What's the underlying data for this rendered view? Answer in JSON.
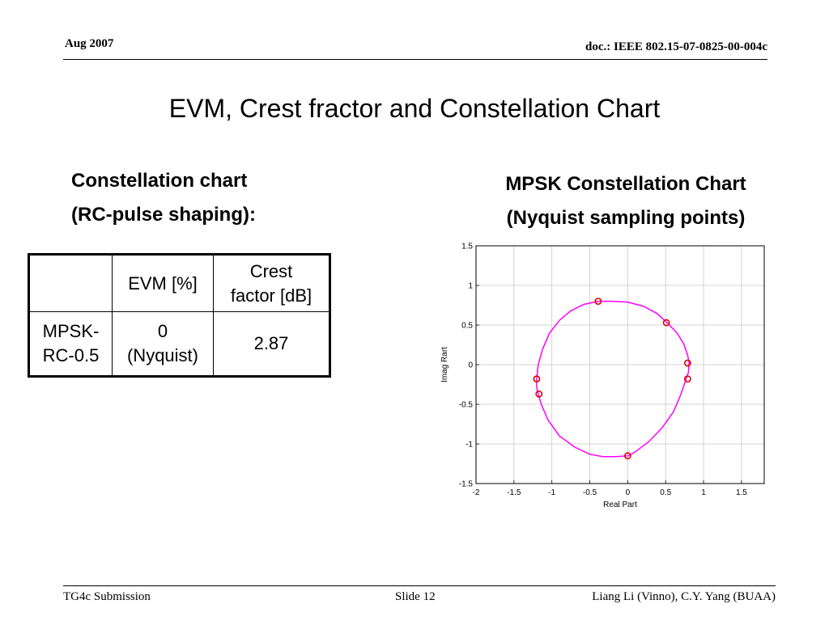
{
  "header": {
    "date": "Aug 2007",
    "doc_id": "doc.: IEEE 802.15-07-0825-00-004c"
  },
  "title": "EVM, Crest fractor and Constellation Chart",
  "left_heading": {
    "line1": "Constellation chart",
    "line2": "(RC-pulse shaping):"
  },
  "right_heading": {
    "line1": "MPSK Constellation Chart",
    "line2": "(Nyquist sampling points)"
  },
  "evm_table": {
    "headers": [
      "",
      "EVM [%]",
      "Crest factor [dB]"
    ],
    "header_crest_lines": [
      "Crest",
      "factor [dB]"
    ],
    "row": {
      "name_lines": [
        "MPSK-",
        "RC-0.5"
      ],
      "evm_lines": [
        "0",
        "(Nyquist)"
      ],
      "crest": "2.87"
    }
  },
  "chart_data": {
    "type": "scatter",
    "xlabel": "Real Part",
    "ylabel": "Imag Rart",
    "xlim": [
      -2,
      1.8
    ],
    "ylim": [
      -1.5,
      1.5
    ],
    "x_ticks": [
      -2,
      -1.5,
      -1,
      -0.5,
      0,
      0.5,
      1,
      1.5
    ],
    "x_tick_labels": [
      "-2",
      "-1.5",
      "-1",
      "-0.5",
      "0",
      "0.5",
      "1",
      "1.5"
    ],
    "y_ticks": [
      1.5,
      1,
      0.5,
      0,
      -0.5,
      -1,
      -1.5
    ],
    "y_tick_labels": [
      "1.5",
      "1",
      "0.5",
      "0",
      "-0.5",
      "-1",
      "-1.5"
    ],
    "grid": true,
    "series": [
      {
        "type": "line",
        "color": "#ff00ff",
        "x": [
          -0.39,
          -0.2,
          0,
          0.2,
          0.38,
          0.52,
          0.65,
          0.74,
          0.79,
          0.81,
          0.8,
          0.77,
          0.7,
          0.6,
          0.45,
          0.28,
          0.1,
          0.01,
          -0.15,
          -0.33,
          -0.5,
          -0.7,
          -0.9,
          -1.05,
          -1.14,
          -1.18,
          -1.2,
          -1.2,
          -1.18,
          -1.12,
          -1.03,
          -0.9,
          -0.75,
          -0.58,
          -0.39
        ],
        "y": [
          0.8,
          0.8,
          0.79,
          0.74,
          0.65,
          0.53,
          0.4,
          0.26,
          0.12,
          0.02,
          -0.1,
          -0.18,
          -0.38,
          -0.6,
          -0.8,
          -0.97,
          -1.1,
          -1.15,
          -1.16,
          -1.16,
          -1.13,
          -1.04,
          -0.9,
          -0.7,
          -0.5,
          -0.37,
          -0.28,
          -0.18,
          0.0,
          0.2,
          0.4,
          0.56,
          0.68,
          0.76,
          0.8
        ]
      },
      {
        "type": "scatter",
        "color": "#e00000",
        "x": [
          -0.39,
          0.51,
          0.79,
          0.79,
          0.0,
          -1.17,
          -1.2
        ],
        "y": [
          0.8,
          0.53,
          0.02,
          -0.18,
          -1.15,
          -0.37,
          -0.18
        ]
      }
    ]
  }
}
